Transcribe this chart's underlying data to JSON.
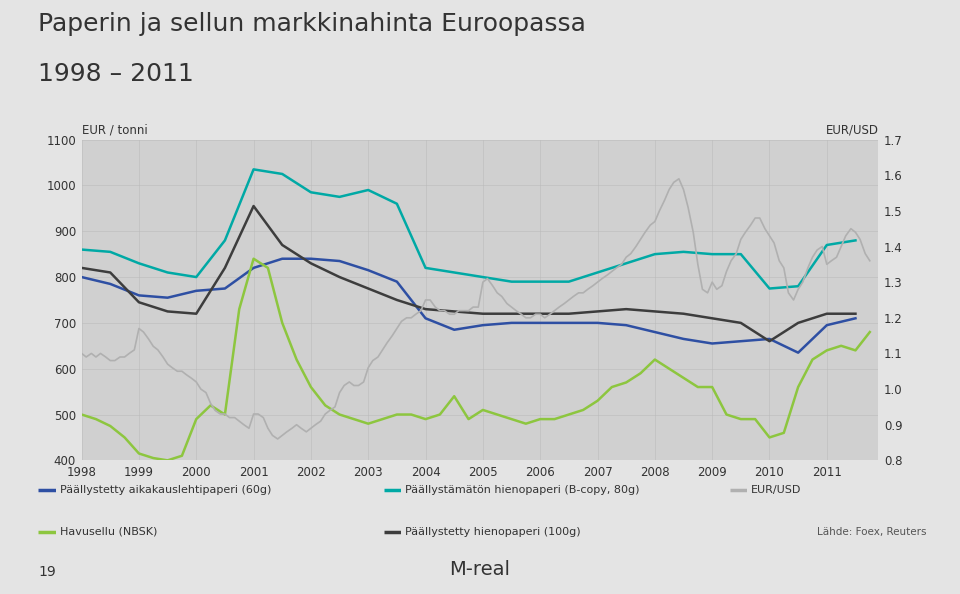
{
  "title_line1": "Paperin ja sellun markkinahinta Euroopassa",
  "title_line2": "1998 – 2011",
  "ylabel_left": "EUR / tonni",
  "ylabel_right": "EUR/USD",
  "xlim": [
    1998,
    2011.9
  ],
  "ylim_left": [
    400,
    1100
  ],
  "ylim_right": [
    0.8,
    1.7
  ],
  "xticks": [
    1998,
    1999,
    2000,
    2001,
    2002,
    2003,
    2004,
    2005,
    2006,
    2007,
    2008,
    2009,
    2010,
    2011
  ],
  "yticks_left": [
    400,
    500,
    600,
    700,
    800,
    900,
    1000,
    1100
  ],
  "yticks_right": [
    0.8,
    0.9,
    1.0,
    1.1,
    1.2,
    1.3,
    1.4,
    1.5,
    1.6,
    1.7
  ],
  "bg_color": "#e4e4e4",
  "plot_bg_color": "#d0d0d0",
  "green_bar_color": "#8dc63f",
  "series_coated_mag": {
    "label": "Päällystetty aikakauslehtipaperi (60g)",
    "color": "#2e4fa3",
    "linewidth": 1.8,
    "x": [
      1998.0,
      1998.5,
      1999.0,
      1999.5,
      2000.0,
      2000.5,
      2001.0,
      2001.5,
      2002.0,
      2002.5,
      2003.0,
      2003.5,
      2004.0,
      2004.5,
      2005.0,
      2005.5,
      2006.0,
      2006.5,
      2007.0,
      2007.5,
      2008.0,
      2008.5,
      2009.0,
      2009.5,
      2010.0,
      2010.5,
      2011.0,
      2011.5
    ],
    "y": [
      800,
      785,
      760,
      755,
      770,
      775,
      820,
      840,
      840,
      835,
      815,
      790,
      710,
      685,
      695,
      700,
      700,
      700,
      700,
      695,
      680,
      665,
      655,
      660,
      665,
      635,
      695,
      710
    ]
  },
  "series_nbsk": {
    "label": "Havusellu (NBSK)",
    "color": "#8dc63f",
    "linewidth": 1.8,
    "x": [
      1998.0,
      1998.25,
      1998.5,
      1998.75,
      1999.0,
      1999.25,
      1999.5,
      1999.75,
      2000.0,
      2000.25,
      2000.5,
      2000.75,
      2001.0,
      2001.25,
      2001.5,
      2001.75,
      2002.0,
      2002.25,
      2002.5,
      2002.75,
      2003.0,
      2003.25,
      2003.5,
      2003.75,
      2004.0,
      2004.25,
      2004.5,
      2004.75,
      2005.0,
      2005.25,
      2005.5,
      2005.75,
      2006.0,
      2006.25,
      2006.5,
      2006.75,
      2007.0,
      2007.25,
      2007.5,
      2007.75,
      2008.0,
      2008.25,
      2008.5,
      2008.75,
      2009.0,
      2009.25,
      2009.5,
      2009.75,
      2010.0,
      2010.25,
      2010.5,
      2010.75,
      2011.0,
      2011.25,
      2011.5,
      2011.75
    ],
    "y": [
      500,
      490,
      475,
      450,
      415,
      405,
      400,
      410,
      490,
      520,
      500,
      730,
      840,
      820,
      700,
      620,
      560,
      520,
      500,
      490,
      480,
      490,
      500,
      500,
      490,
      500,
      540,
      490,
      510,
      500,
      490,
      480,
      490,
      490,
      500,
      510,
      530,
      560,
      570,
      590,
      620,
      600,
      580,
      560,
      560,
      500,
      490,
      490,
      450,
      460,
      560,
      620,
      640,
      650,
      640,
      680
    ]
  },
  "series_uncoated_fine": {
    "label": "Päällystämätön hienopaperi (B-copy, 80g)",
    "color": "#00a9a5",
    "linewidth": 1.8,
    "x": [
      1998.0,
      1998.5,
      1999.0,
      1999.5,
      2000.0,
      2000.5,
      2001.0,
      2001.5,
      2002.0,
      2002.5,
      2003.0,
      2003.5,
      2004.0,
      2004.5,
      2005.0,
      2005.5,
      2006.0,
      2006.5,
      2007.0,
      2007.5,
      2008.0,
      2008.5,
      2009.0,
      2009.5,
      2010.0,
      2010.5,
      2011.0,
      2011.5
    ],
    "y": [
      860,
      855,
      830,
      810,
      800,
      880,
      1035,
      1025,
      985,
      975,
      990,
      960,
      820,
      810,
      800,
      790,
      790,
      790,
      810,
      830,
      850,
      855,
      850,
      850,
      775,
      780,
      870,
      880
    ]
  },
  "series_coated_fine": {
    "label": "Päällystetty hienopaperi (100g)",
    "color": "#3d3d3d",
    "linewidth": 1.8,
    "x": [
      1998.0,
      1998.5,
      1999.0,
      1999.5,
      2000.0,
      2000.5,
      2001.0,
      2001.5,
      2002.0,
      2002.5,
      2003.0,
      2003.5,
      2004.0,
      2004.5,
      2005.0,
      2005.5,
      2006.0,
      2006.5,
      2007.0,
      2007.5,
      2008.0,
      2008.5,
      2009.0,
      2009.5,
      2010.0,
      2010.5,
      2011.0,
      2011.5
    ],
    "y": [
      820,
      810,
      745,
      725,
      720,
      820,
      955,
      870,
      830,
      800,
      775,
      750,
      730,
      725,
      720,
      720,
      720,
      720,
      725,
      730,
      725,
      720,
      710,
      700,
      660,
      700,
      720,
      720
    ]
  },
  "series_eurusd": {
    "label": "EUR/USD",
    "color": "#b0b0b0",
    "linewidth": 1.2,
    "x": [
      1998.0,
      1998.08,
      1998.17,
      1998.25,
      1998.33,
      1998.42,
      1998.5,
      1998.58,
      1998.67,
      1998.75,
      1998.83,
      1998.92,
      1999.0,
      1999.08,
      1999.17,
      1999.25,
      1999.33,
      1999.42,
      1999.5,
      1999.58,
      1999.67,
      1999.75,
      1999.83,
      1999.92,
      2000.0,
      2000.08,
      2000.17,
      2000.25,
      2000.33,
      2000.42,
      2000.5,
      2000.58,
      2000.67,
      2000.75,
      2000.83,
      2000.92,
      2001.0,
      2001.08,
      2001.17,
      2001.25,
      2001.33,
      2001.42,
      2001.5,
      2001.58,
      2001.67,
      2001.75,
      2001.83,
      2001.92,
      2002.0,
      2002.08,
      2002.17,
      2002.25,
      2002.33,
      2002.42,
      2002.5,
      2002.58,
      2002.67,
      2002.75,
      2002.83,
      2002.92,
      2003.0,
      2003.08,
      2003.17,
      2003.25,
      2003.33,
      2003.42,
      2003.5,
      2003.58,
      2003.67,
      2003.75,
      2003.83,
      2003.92,
      2004.0,
      2004.08,
      2004.17,
      2004.25,
      2004.33,
      2004.42,
      2004.5,
      2004.58,
      2004.67,
      2004.75,
      2004.83,
      2004.92,
      2005.0,
      2005.08,
      2005.17,
      2005.25,
      2005.33,
      2005.42,
      2005.5,
      2005.58,
      2005.67,
      2005.75,
      2005.83,
      2005.92,
      2006.0,
      2006.08,
      2006.17,
      2006.25,
      2006.33,
      2006.42,
      2006.5,
      2006.58,
      2006.67,
      2006.75,
      2006.83,
      2006.92,
      2007.0,
      2007.08,
      2007.17,
      2007.25,
      2007.33,
      2007.42,
      2007.5,
      2007.58,
      2007.67,
      2007.75,
      2007.83,
      2007.92,
      2008.0,
      2008.08,
      2008.17,
      2008.25,
      2008.33,
      2008.42,
      2008.5,
      2008.58,
      2008.67,
      2008.75,
      2008.83,
      2008.92,
      2009.0,
      2009.08,
      2009.17,
      2009.25,
      2009.33,
      2009.42,
      2009.5,
      2009.58,
      2009.67,
      2009.75,
      2009.83,
      2009.92,
      2010.0,
      2010.08,
      2010.17,
      2010.25,
      2010.33,
      2010.42,
      2010.5,
      2010.58,
      2010.67,
      2010.75,
      2010.83,
      2010.92,
      2011.0,
      2011.08,
      2011.17,
      2011.25,
      2011.33,
      2011.42,
      2011.5,
      2011.58,
      2011.67,
      2011.75
    ],
    "y": [
      1.1,
      1.09,
      1.1,
      1.09,
      1.1,
      1.09,
      1.08,
      1.08,
      1.09,
      1.09,
      1.1,
      1.11,
      1.17,
      1.16,
      1.14,
      1.12,
      1.11,
      1.09,
      1.07,
      1.06,
      1.05,
      1.05,
      1.04,
      1.03,
      1.02,
      1.0,
      0.99,
      0.96,
      0.94,
      0.93,
      0.93,
      0.92,
      0.92,
      0.91,
      0.9,
      0.89,
      0.93,
      0.93,
      0.92,
      0.89,
      0.87,
      0.86,
      0.87,
      0.88,
      0.89,
      0.9,
      0.89,
      0.88,
      0.89,
      0.9,
      0.91,
      0.93,
      0.94,
      0.95,
      0.99,
      1.01,
      1.02,
      1.01,
      1.01,
      1.02,
      1.06,
      1.08,
      1.09,
      1.11,
      1.13,
      1.15,
      1.17,
      1.19,
      1.2,
      1.2,
      1.21,
      1.22,
      1.25,
      1.25,
      1.23,
      1.22,
      1.22,
      1.21,
      1.21,
      1.22,
      1.22,
      1.22,
      1.23,
      1.23,
      1.3,
      1.31,
      1.29,
      1.27,
      1.26,
      1.24,
      1.23,
      1.22,
      1.21,
      1.2,
      1.2,
      1.21,
      1.21,
      1.2,
      1.21,
      1.22,
      1.23,
      1.24,
      1.25,
      1.26,
      1.27,
      1.27,
      1.28,
      1.29,
      1.3,
      1.31,
      1.32,
      1.33,
      1.34,
      1.35,
      1.37,
      1.38,
      1.4,
      1.42,
      1.44,
      1.46,
      1.47,
      1.5,
      1.53,
      1.56,
      1.58,
      1.59,
      1.56,
      1.51,
      1.44,
      1.35,
      1.28,
      1.27,
      1.3,
      1.28,
      1.29,
      1.33,
      1.36,
      1.38,
      1.42,
      1.44,
      1.46,
      1.48,
      1.48,
      1.45,
      1.43,
      1.41,
      1.36,
      1.34,
      1.27,
      1.25,
      1.28,
      1.3,
      1.34,
      1.37,
      1.39,
      1.4,
      1.35,
      1.36,
      1.37,
      1.4,
      1.43,
      1.45,
      1.44,
      1.42,
      1.38,
      1.36
    ]
  },
  "source_text": "Lähde: Foex, Reuters",
  "bottom_left_text": "19",
  "bottom_center_text": "M-real"
}
